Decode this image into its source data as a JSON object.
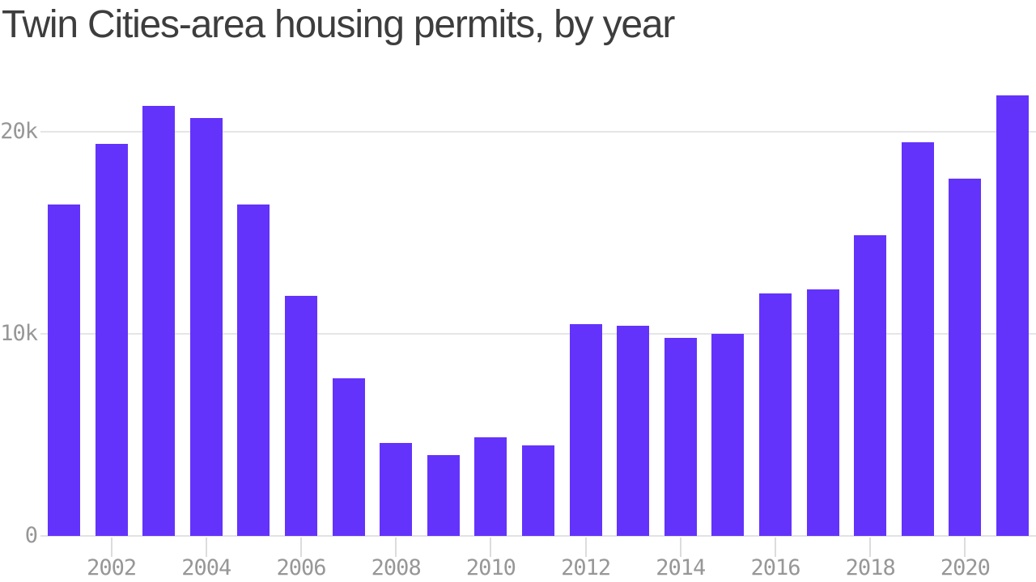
{
  "title": "Twin Cities-area housing permits, by year",
  "colors": {
    "bar": "#6333fb",
    "title_text": "#3d3d3d",
    "axis_text": "#979797",
    "gridline": "#e5e5e5",
    "axis_line": "#e2e2e2",
    "tick_mark": "#dcdcdc",
    "background": "#ffffff"
  },
  "chart_data": {
    "type": "bar",
    "title": "Twin Cities-area housing permits, by year",
    "series_name": "Housing permits",
    "xlabel": "",
    "ylabel": "",
    "categories": [
      2001,
      2002,
      2003,
      2004,
      2005,
      2006,
      2007,
      2008,
      2009,
      2010,
      2011,
      2012,
      2013,
      2014,
      2015,
      2016,
      2017,
      2018,
      2019,
      2020,
      2021
    ],
    "values": [
      16400,
      19400,
      21300,
      20700,
      16400,
      11900,
      7800,
      4600,
      4000,
      4900,
      4500,
      10500,
      10400,
      9800,
      10000,
      12000,
      12200,
      14900,
      19500,
      17700,
      21800
    ],
    "ylim": [
      0,
      22800
    ],
    "y_ticks": [
      {
        "value": 0,
        "label": "0"
      },
      {
        "value": 10000,
        "label": "10k"
      },
      {
        "value": 20000,
        "label": "20k"
      }
    ],
    "x_ticks": [
      {
        "year": 2002,
        "label": "2002"
      },
      {
        "year": 2004,
        "label": "2004"
      },
      {
        "year": 2006,
        "label": "2006"
      },
      {
        "year": 2008,
        "label": "2008"
      },
      {
        "year": 2010,
        "label": "2010"
      },
      {
        "year": 2012,
        "label": "2012"
      },
      {
        "year": 2014,
        "label": "2014"
      },
      {
        "year": 2016,
        "label": "2016"
      },
      {
        "year": 2018,
        "label": "2018"
      },
      {
        "year": 2020,
        "label": "2020"
      }
    ],
    "grid": "horizontal",
    "legend": "none"
  }
}
